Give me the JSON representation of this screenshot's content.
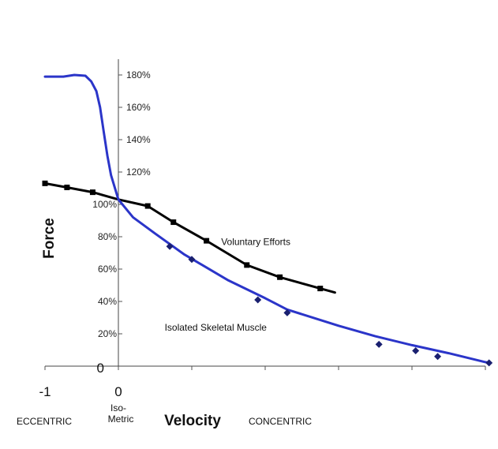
{
  "chart_data": {
    "type": "line",
    "title": "",
    "xlabel": "Velocity",
    "ylabel": "Force",
    "xlim": [
      -1,
      5
    ],
    "ylim": [
      0,
      1.85
    ],
    "x_ticks": [
      {
        "value": -1,
        "label": "-1"
      },
      {
        "value": 0,
        "label": "0"
      }
    ],
    "y_ticks": [
      {
        "value": 0,
        "label": "0"
      },
      {
        "value": 0.2,
        "label": "20%"
      },
      {
        "value": 0.4,
        "label": "40%"
      },
      {
        "value": 0.6,
        "label": "60%"
      },
      {
        "value": 0.8,
        "label": "80%"
      },
      {
        "value": 1.0,
        "label": "100%"
      },
      {
        "value": 1.2,
        "label": "120%"
      },
      {
        "value": 1.4,
        "label": "140%"
      },
      {
        "value": 1.6,
        "label": "160%"
      },
      {
        "value": 1.8,
        "label": "180%"
      }
    ],
    "region_labels": {
      "eccentric": "ECCENTRIC",
      "isometric_line1": "Iso-",
      "isometric_line2": "Metric",
      "concentric": "CONCENTRIC"
    },
    "series": [
      {
        "name": "Voluntary Efforts",
        "color": "#000000",
        "marker": "square",
        "curve": [
          [
            -1.0,
            1.13
          ],
          [
            -0.7,
            1.105
          ],
          [
            -0.35,
            1.075
          ],
          [
            0.0,
            1.03
          ],
          [
            0.4,
            0.99
          ],
          [
            0.75,
            0.89
          ],
          [
            1.2,
            0.775
          ],
          [
            1.75,
            0.625
          ],
          [
            2.2,
            0.55
          ],
          [
            2.75,
            0.48
          ],
          [
            2.95,
            0.455
          ]
        ],
        "markers": [
          [
            -1.0,
            1.13
          ],
          [
            -0.7,
            1.105
          ],
          [
            -0.35,
            1.075
          ],
          [
            0.4,
            0.99
          ],
          [
            0.75,
            0.89
          ],
          [
            1.2,
            0.775
          ],
          [
            1.75,
            0.625
          ],
          [
            2.2,
            0.55
          ],
          [
            2.75,
            0.48
          ]
        ]
      },
      {
        "name": "Isolated Skeletal Muscle",
        "color": "#2b35c9",
        "marker": "diamond",
        "curve": [
          [
            -1.0,
            1.79
          ],
          [
            -0.75,
            1.79
          ],
          [
            -0.6,
            1.8
          ],
          [
            -0.45,
            1.795
          ],
          [
            -0.37,
            1.76
          ],
          [
            -0.3,
            1.7
          ],
          [
            -0.25,
            1.6
          ],
          [
            -0.2,
            1.45
          ],
          [
            -0.15,
            1.3
          ],
          [
            -0.1,
            1.18
          ],
          [
            0.0,
            1.03
          ],
          [
            0.2,
            0.92
          ],
          [
            0.5,
            0.82
          ],
          [
            0.9,
            0.69
          ],
          [
            1.5,
            0.53
          ],
          [
            2.0,
            0.42
          ],
          [
            2.3,
            0.35
          ],
          [
            3.0,
            0.25
          ],
          [
            3.5,
            0.185
          ],
          [
            4.0,
            0.13
          ],
          [
            4.5,
            0.08
          ],
          [
            5.0,
            0.025
          ],
          [
            5.05,
            0.02
          ]
        ],
        "markers": [
          [
            0.7,
            0.74
          ],
          [
            1.0,
            0.66
          ],
          [
            1.9,
            0.41
          ],
          [
            2.3,
            0.33
          ],
          [
            3.55,
            0.135
          ],
          [
            4.05,
            0.095
          ],
          [
            4.35,
            0.06
          ],
          [
            5.05,
            0.02
          ]
        ]
      }
    ],
    "annotations": [
      {
        "text": "Voluntary Efforts",
        "x": 1.4,
        "y": 0.75
      },
      {
        "text": "Isolated Skeletal Muscle",
        "x": 0.63,
        "y": 0.22
      }
    ],
    "grid": false,
    "legend": "none"
  }
}
